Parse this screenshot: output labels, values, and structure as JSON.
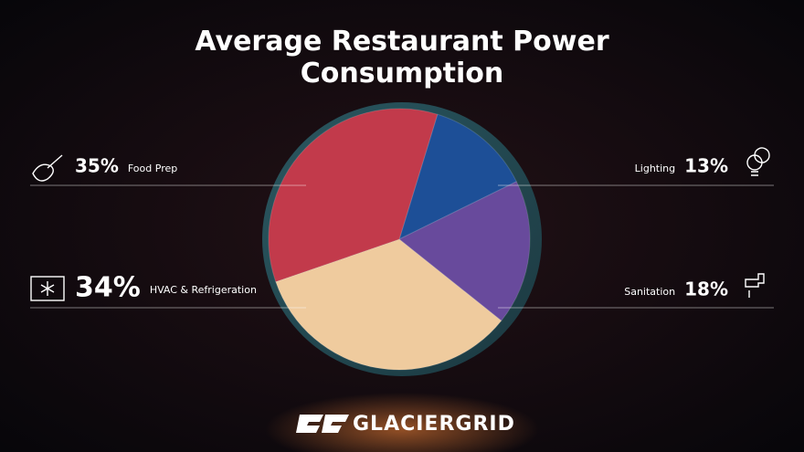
{
  "chart_data": {
    "type": "pie",
    "title": "Average Restaurant Power Consumption",
    "categories": [
      "Lighting",
      "Sanitation",
      "HVAC & Refrigeration",
      "Food Prep"
    ],
    "values": [
      13,
      18,
      34,
      35
    ],
    "value_labels": [
      "13%",
      "18%",
      "34%",
      "35%"
    ],
    "colors": [
      "#1d4f97",
      "#684a9c",
      "#efcb9e",
      "#c23a4b"
    ]
  },
  "footer": {
    "brand": "GLACIERGRID"
  }
}
